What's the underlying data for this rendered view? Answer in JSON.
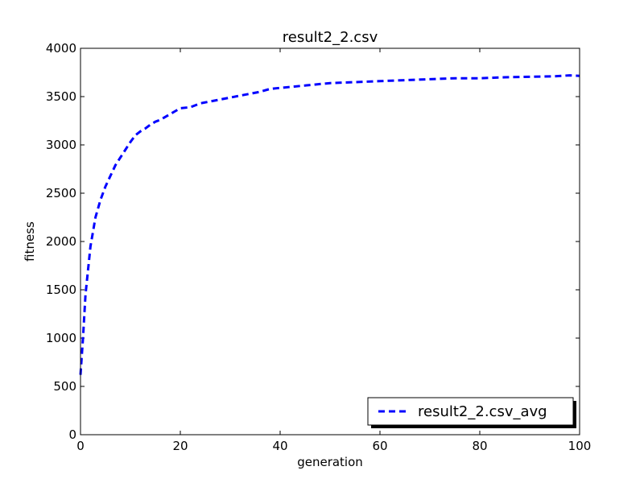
{
  "chart_data": {
    "type": "line",
    "title": "result2_2.csv",
    "xlabel": "generation",
    "ylabel": "fitness",
    "xlim": [
      0,
      100
    ],
    "ylim": [
      0,
      4000
    ],
    "x_ticks": [
      0,
      20,
      40,
      60,
      80,
      100
    ],
    "y_ticks": [
      0,
      500,
      1000,
      1500,
      2000,
      2500,
      3000,
      3500,
      4000
    ],
    "grid": false,
    "legend_position": "lower-right",
    "series": [
      {
        "name": "result2_2.csv_avg",
        "color": "#0000ff",
        "line_style": "dashed",
        "x": [
          0,
          0.5,
          1,
          2,
          3,
          4,
          5,
          6,
          7,
          8,
          9,
          10,
          11,
          12,
          13,
          14,
          15,
          16,
          17,
          18,
          19,
          20,
          22,
          24,
          26,
          28,
          30,
          32,
          34,
          36,
          38,
          40,
          42,
          44,
          46,
          48,
          50,
          55,
          60,
          65,
          70,
          75,
          80,
          85,
          90,
          95,
          98,
          100
        ],
        "y": [
          620,
          1000,
          1450,
          1950,
          2250,
          2430,
          2570,
          2680,
          2790,
          2870,
          2950,
          3030,
          3100,
          3140,
          3170,
          3210,
          3240,
          3260,
          3290,
          3320,
          3350,
          3380,
          3390,
          3430,
          3450,
          3470,
          3490,
          3510,
          3530,
          3550,
          3580,
          3590,
          3600,
          3610,
          3620,
          3630,
          3640,
          3650,
          3660,
          3670,
          3680,
          3690,
          3690,
          3700,
          3705,
          3710,
          3720,
          3715
        ]
      }
    ]
  }
}
